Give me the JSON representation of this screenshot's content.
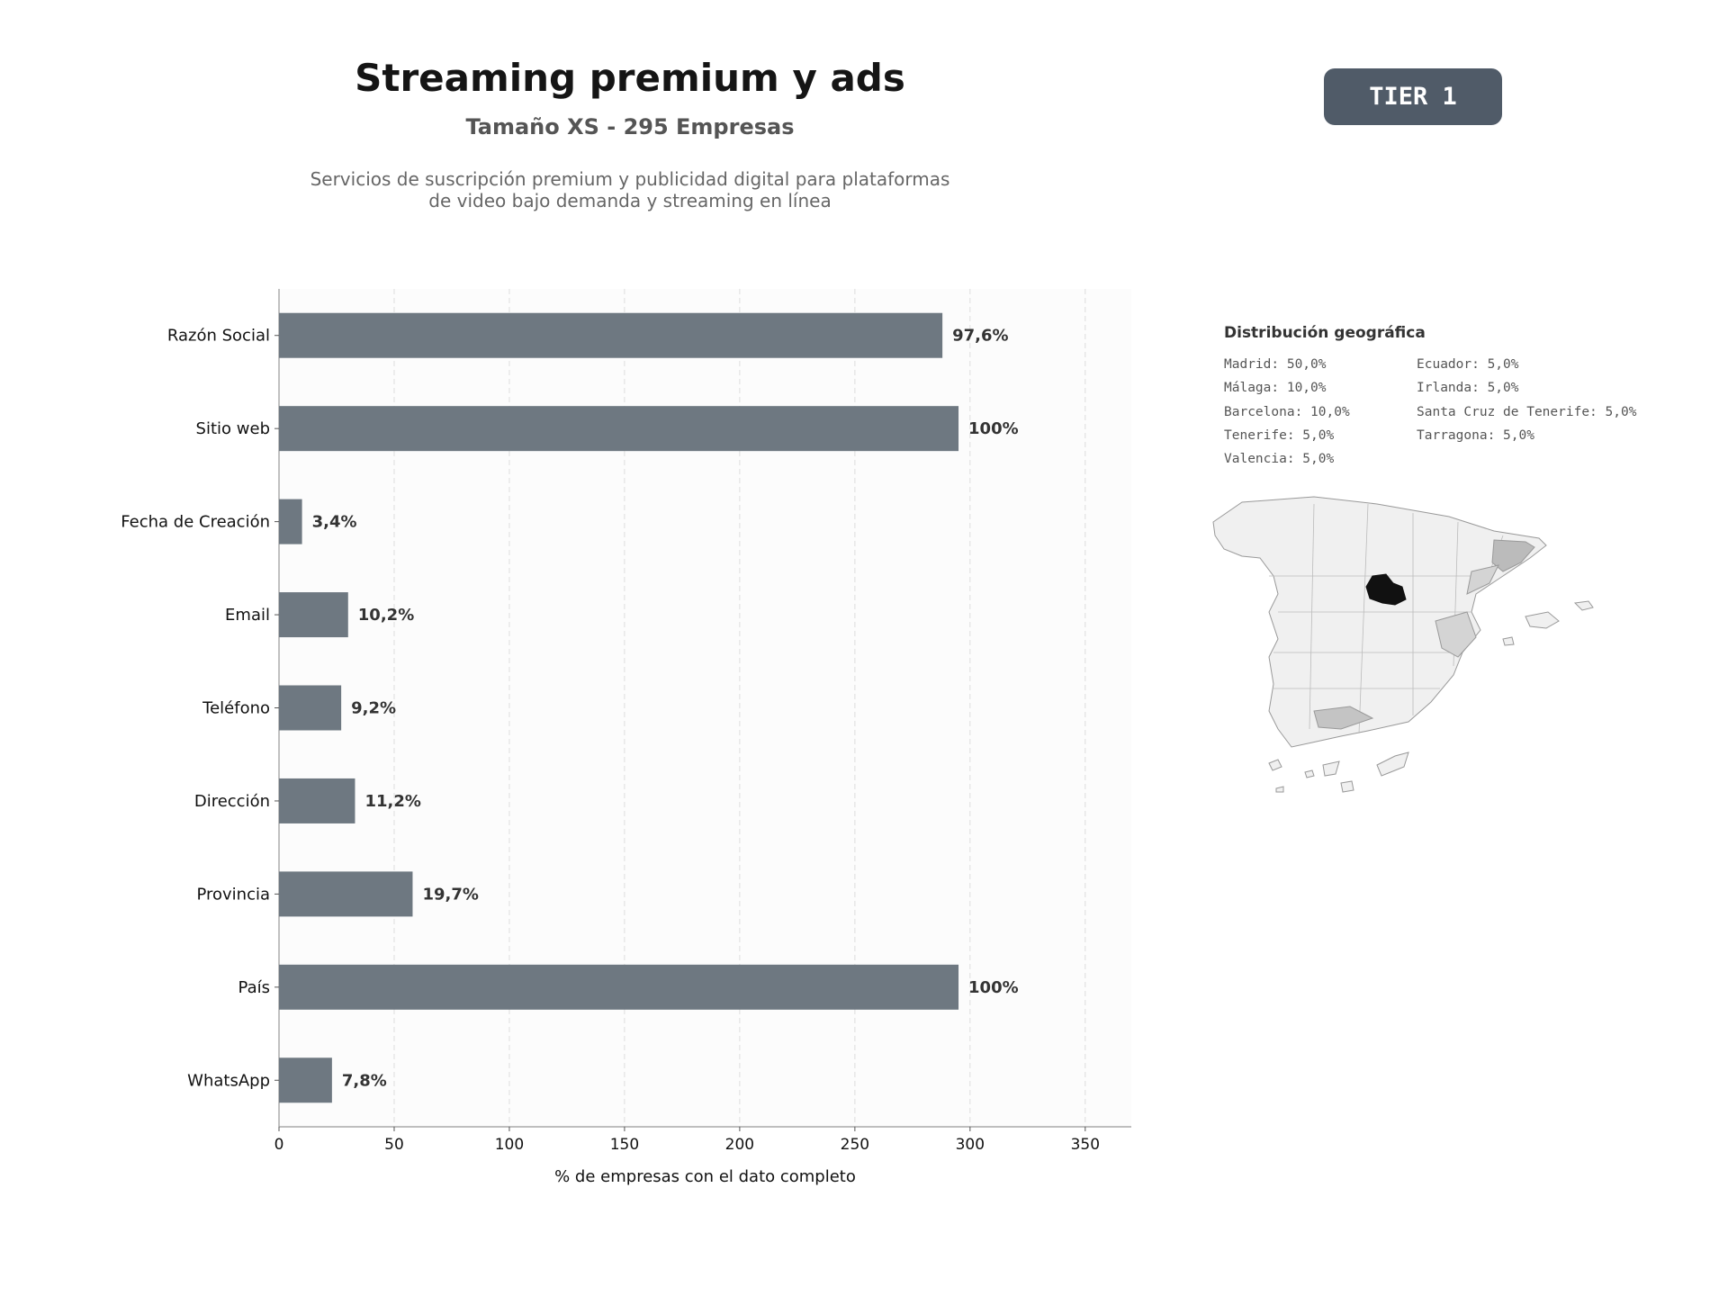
{
  "header": {
    "title": "Streaming premium y ads",
    "subtitle": "Tamaño XS - 295 Empresas",
    "description": "Servicios de suscripción premium y publicidad digital para plataformas de video bajo demanda y streaming en línea"
  },
  "badge": {
    "label": "TIER 1"
  },
  "chart_data": {
    "type": "bar",
    "orientation": "horizontal",
    "categories": [
      "Razón Social",
      "Sitio web",
      "Fecha de Creación",
      "Email",
      "Teléfono",
      "Dirección",
      "Provincia",
      "País",
      "WhatsApp"
    ],
    "values": [
      288,
      295,
      10,
      30,
      27,
      33,
      58,
      295,
      23
    ],
    "value_labels": [
      "97,6%",
      "100%",
      "3,4%",
      "10,2%",
      "9,2%",
      "11,2%",
      "19,7%",
      "100%",
      "7,8%"
    ],
    "xlabel": "% de empresas con el dato completo",
    "xlim": [
      0,
      370
    ],
    "xticks": [
      0,
      50,
      100,
      150,
      200,
      250,
      300,
      350
    ],
    "grid": "vertical dashed",
    "colors": {
      "bar": "#6e7881",
      "plot_bg": "#fcfcfc",
      "grid": "#dddddd"
    }
  },
  "geo": {
    "title": "Distribución geográfica",
    "left": [
      "Madrid: 50,0%",
      "Málaga: 10,0%",
      "Barcelona: 10,0%",
      "Tenerife: 5,0%",
      "Valencia: 5,0%"
    ],
    "right": [
      "Ecuador: 5,0%",
      "Irlanda: 5,0%",
      "Santa Cruz de Tenerife: 5,0%",
      "Tarragona: 5,0%"
    ],
    "map_colors": {
      "madrid": "#111111",
      "high": "#bbbbbb",
      "low": "#d4d4d4",
      "base": "#f0f0f0",
      "border": "#999999"
    }
  }
}
